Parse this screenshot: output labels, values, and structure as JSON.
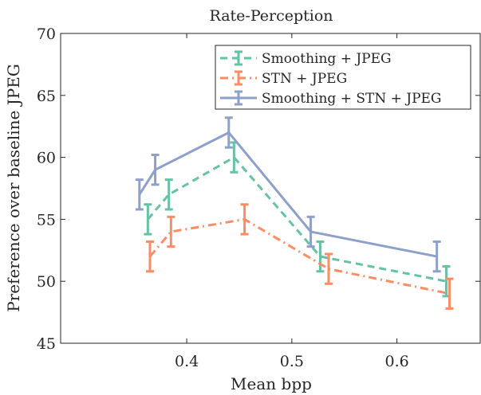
{
  "chart_data": {
    "type": "line",
    "title": "Rate-Perception",
    "xlabel": "Mean bpp",
    "ylabel": "Preference over baseline JPEG",
    "xlim": [
      0.28,
      0.68
    ],
    "ylim": [
      45,
      70
    ],
    "xticks": [
      "0.4",
      "0.5",
      "0.6"
    ],
    "xtick_values": [
      0.4,
      0.5,
      0.6
    ],
    "yticks": [
      "45",
      "50",
      "55",
      "60",
      "65",
      "70"
    ],
    "ytick_values": [
      45,
      50,
      55,
      60,
      65,
      70
    ],
    "grid": false,
    "legend_position": "top-right",
    "series": [
      {
        "name": "Smoothing + JPEG",
        "color": "#66c2a5",
        "line_style": "dashed",
        "x": [
          0.363,
          0.383,
          0.445,
          0.527,
          0.647
        ],
        "y": [
          55,
          57,
          60,
          52,
          50
        ],
        "err": [
          1.2,
          1.2,
          1.2,
          1.2,
          1.2
        ]
      },
      {
        "name": "STN + JPEG",
        "color": "#fc8d62",
        "line_style": "dashdot",
        "x": [
          0.365,
          0.385,
          0.455,
          0.535,
          0.65
        ],
        "y": [
          52,
          54,
          55,
          51,
          49
        ],
        "err": [
          1.2,
          1.2,
          1.2,
          1.2,
          1.2
        ]
      },
      {
        "name": "Smoothing + STN + JPEG",
        "color": "#8da0cb",
        "line_style": "solid",
        "x": [
          0.355,
          0.37,
          0.44,
          0.518,
          0.638
        ],
        "y": [
          57,
          59,
          62,
          54,
          52
        ],
        "err": [
          1.2,
          1.2,
          1.2,
          1.2,
          1.2
        ]
      }
    ]
  }
}
